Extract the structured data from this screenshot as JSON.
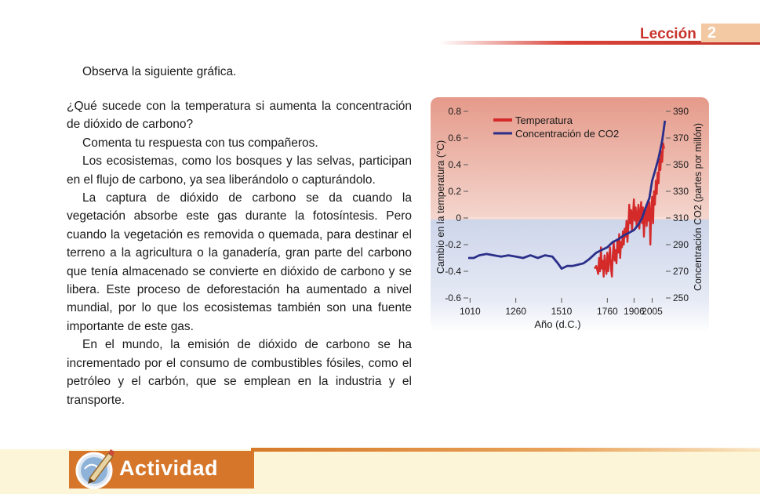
{
  "header": {
    "lesson_label": "Lección",
    "lesson_number": "2"
  },
  "intro": "Observa la siguiente gráfica.",
  "body": {
    "question": "¿Qué sucede con la temperatura si aumenta la concentración de dióxido de carbono?",
    "p1": "Comenta tu respuesta con tus compañeros.",
    "p2": "Los ecosistemas, como los bosques y las selvas, participan en el flujo de carbono, ya sea liberándolo o capturándolo.",
    "p3": "La captura de dióxido de carbono se da cuando la vegetación absorbe este gas durante la fotosíntesis. Pero cuando la vegetación es removida o quemada, para destinar el terreno a la agricultura o la ganadería, gran parte del carbono que tenía almacenado se convierte en dióxido de carbono y se libera. Este proceso de deforestación ha aumentado a nivel mundial, por lo que los ecosistemas también son una fuente importante de este gas.",
    "p4": "En el mundo, la emisión de dióxido de carbono se ha incrementado por el consumo de combustibles fósiles, como el petróleo y el carbón, que se emplean en la industria y el transporte."
  },
  "activity": {
    "label": "Actividad"
  },
  "chart_data": {
    "type": "line",
    "xlabel": "Año (d.C.)",
    "ylabel_left": "Cambio en la temperatura (°C)",
    "ylabel_right": "Concentración CO2 (partes por millón)",
    "x_ticks": [
      "1010",
      "1260",
      "1510",
      "1760",
      "1906",
      "2005"
    ],
    "y_left_ticks": [
      "0.8",
      "0.6",
      "0.4",
      "0.2",
      "0",
      "-0.2",
      "-0.4",
      "-0.6"
    ],
    "y_right_ticks": [
      "390",
      "370",
      "350",
      "330",
      "310",
      "290",
      "270",
      "250"
    ],
    "ylim_left": [
      -0.6,
      0.8
    ],
    "ylim_right": [
      250,
      390
    ],
    "legend": [
      "Temperatura",
      "Concentración de CO2"
    ],
    "legend_position": "top-left",
    "colors": {
      "temperature": "#d42a2a",
      "co2": "#2b2f8a"
    },
    "series": [
      {
        "name": "Concentración de CO2",
        "axis": "right",
        "x": [
          1000,
          1030,
          1060,
          1100,
          1140,
          1180,
          1220,
          1260,
          1300,
          1340,
          1380,
          1420,
          1460,
          1490,
          1510,
          1540,
          1570,
          1600,
          1630,
          1660,
          1700,
          1730,
          1760,
          1790,
          1820,
          1850,
          1880,
          1906,
          1930,
          1950,
          1970,
          1990,
          2005,
          2020,
          2040,
          2060,
          2075
        ],
        "values": [
          280,
          280,
          282,
          283,
          282,
          281,
          282,
          281,
          280,
          282,
          280,
          282,
          281,
          276,
          272,
          274,
          274,
          275,
          276,
          279,
          284,
          286,
          288,
          292,
          294,
          297,
          299,
          301,
          305,
          310,
          318,
          325,
          338,
          345,
          355,
          368,
          383
        ]
      },
      {
        "name": "Temperatura",
        "axis": "left",
        "x": [
          1690,
          1700,
          1710,
          1715,
          1720,
          1725,
          1730,
          1735,
          1740,
          1745,
          1750,
          1755,
          1760,
          1765,
          1770,
          1775,
          1780,
          1785,
          1790,
          1795,
          1800,
          1805,
          1810,
          1815,
          1820,
          1825,
          1830,
          1835,
          1840,
          1845,
          1850,
          1855,
          1860,
          1865,
          1870,
          1875,
          1880,
          1885,
          1890,
          1895,
          1900,
          1905,
          1910,
          1915,
          1920,
          1925,
          1930,
          1935,
          1940,
          1945,
          1950,
          1955,
          1960,
          1965,
          1970,
          1975,
          1980,
          1985,
          1990,
          1995,
          2000,
          2005,
          2010,
          2015,
          2020,
          2025,
          2030,
          2035,
          2040,
          2045,
          2050,
          2055,
          2060,
          2065,
          2070
        ],
        "values": [
          -0.38,
          -0.36,
          -0.42,
          -0.3,
          -0.4,
          -0.22,
          -0.38,
          -0.32,
          -0.44,
          -0.28,
          -0.36,
          -0.42,
          -0.26,
          -0.4,
          -0.3,
          -0.22,
          -0.38,
          -0.44,
          -0.28,
          -0.18,
          -0.32,
          -0.24,
          -0.34,
          -0.16,
          -0.26,
          -0.12,
          -0.3,
          -0.18,
          -0.22,
          -0.1,
          -0.2,
          -0.08,
          -0.14,
          -0.02,
          -0.18,
          -0.06,
          0.1,
          -0.04,
          0.06,
          -0.1,
          0.02,
          0.14,
          -0.02,
          0.08,
          -0.06,
          0.02,
          0.1,
          -0.08,
          0.04,
          0.12,
          -0.04,
          0.08,
          -0.14,
          0.02,
          0.06,
          -0.06,
          0.1,
          -0.02,
          0.12,
          -0.2,
          0.04,
          0.16,
          -0.04,
          0.2,
          0.1,
          0.28,
          0.18,
          0.34,
          0.26,
          0.44,
          0.36,
          0.5,
          0.42,
          0.56,
          0.52
        ]
      }
    ]
  }
}
